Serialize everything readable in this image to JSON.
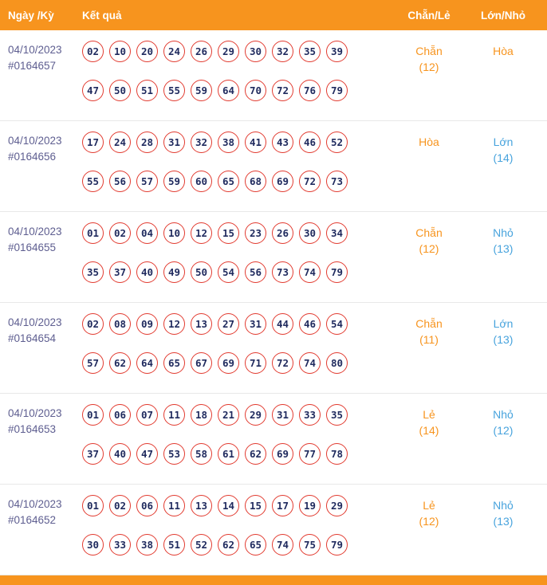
{
  "header": {
    "date_col": "Ngày /Kỳ",
    "result_col": "Kết quả",
    "chan_le_col": "Chẵn/Lẻ",
    "lon_nho_col": "Lớn/Nhỏ"
  },
  "colors": {
    "header_bg": "#F7941E",
    "header_text": "#FFFFFF",
    "ball_border": "#E23B30",
    "ball_text": "#1F2A5E",
    "date_text": "#5E5E90",
    "orange": "#F7941E",
    "blue": "#47A3DD",
    "divider": "#E8E8E8",
    "footer_bg": "#F7941E"
  },
  "rows": [
    {
      "date": "04/10/2023",
      "id": "#0164657",
      "numbers_line1": [
        "02",
        "10",
        "20",
        "24",
        "26",
        "29",
        "30",
        "32",
        "35",
        "39"
      ],
      "numbers_line2": [
        "47",
        "50",
        "51",
        "55",
        "59",
        "64",
        "70",
        "72",
        "76",
        "79"
      ],
      "chan_le": {
        "label": "Chẵn",
        "count": "(12)",
        "color": "orange"
      },
      "lon_nho": {
        "label": "Hòa",
        "count": "",
        "color": "orange"
      }
    },
    {
      "date": "04/10/2023",
      "id": "#0164656",
      "numbers_line1": [
        "17",
        "24",
        "28",
        "31",
        "32",
        "38",
        "41",
        "43",
        "46",
        "52"
      ],
      "numbers_line2": [
        "55",
        "56",
        "57",
        "59",
        "60",
        "65",
        "68",
        "69",
        "72",
        "73"
      ],
      "chan_le": {
        "label": "Hòa",
        "count": "",
        "color": "orange"
      },
      "lon_nho": {
        "label": "Lớn",
        "count": "(14)",
        "color": "blue"
      }
    },
    {
      "date": "04/10/2023",
      "id": "#0164655",
      "numbers_line1": [
        "01",
        "02",
        "04",
        "10",
        "12",
        "15",
        "23",
        "26",
        "30",
        "34"
      ],
      "numbers_line2": [
        "35",
        "37",
        "40",
        "49",
        "50",
        "54",
        "56",
        "73",
        "74",
        "79"
      ],
      "chan_le": {
        "label": "Chẵn",
        "count": "(12)",
        "color": "orange"
      },
      "lon_nho": {
        "label": "Nhỏ",
        "count": "(13)",
        "color": "blue"
      }
    },
    {
      "date": "04/10/2023",
      "id": "#0164654",
      "numbers_line1": [
        "02",
        "08",
        "09",
        "12",
        "13",
        "27",
        "31",
        "44",
        "46",
        "54"
      ],
      "numbers_line2": [
        "57",
        "62",
        "64",
        "65",
        "67",
        "69",
        "71",
        "72",
        "74",
        "80"
      ],
      "chan_le": {
        "label": "Chẵn",
        "count": "(11)",
        "color": "orange"
      },
      "lon_nho": {
        "label": "Lớn",
        "count": "(13)",
        "color": "blue"
      }
    },
    {
      "date": "04/10/2023",
      "id": "#0164653",
      "numbers_line1": [
        "01",
        "06",
        "07",
        "11",
        "18",
        "21",
        "29",
        "31",
        "33",
        "35"
      ],
      "numbers_line2": [
        "37",
        "40",
        "47",
        "53",
        "58",
        "61",
        "62",
        "69",
        "77",
        "78"
      ],
      "chan_le": {
        "label": "Lẻ",
        "count": "(14)",
        "color": "orange"
      },
      "lon_nho": {
        "label": "Nhỏ",
        "count": "(12)",
        "color": "blue"
      }
    },
    {
      "date": "04/10/2023",
      "id": "#0164652",
      "numbers_line1": [
        "01",
        "02",
        "06",
        "11",
        "13",
        "14",
        "15",
        "17",
        "19",
        "29"
      ],
      "numbers_line2": [
        "30",
        "33",
        "38",
        "51",
        "52",
        "62",
        "65",
        "74",
        "75",
        "79"
      ],
      "chan_le": {
        "label": "Lẻ",
        "count": "(12)",
        "color": "orange"
      },
      "lon_nho": {
        "label": "Nhỏ",
        "count": "(13)",
        "color": "blue"
      }
    }
  ]
}
